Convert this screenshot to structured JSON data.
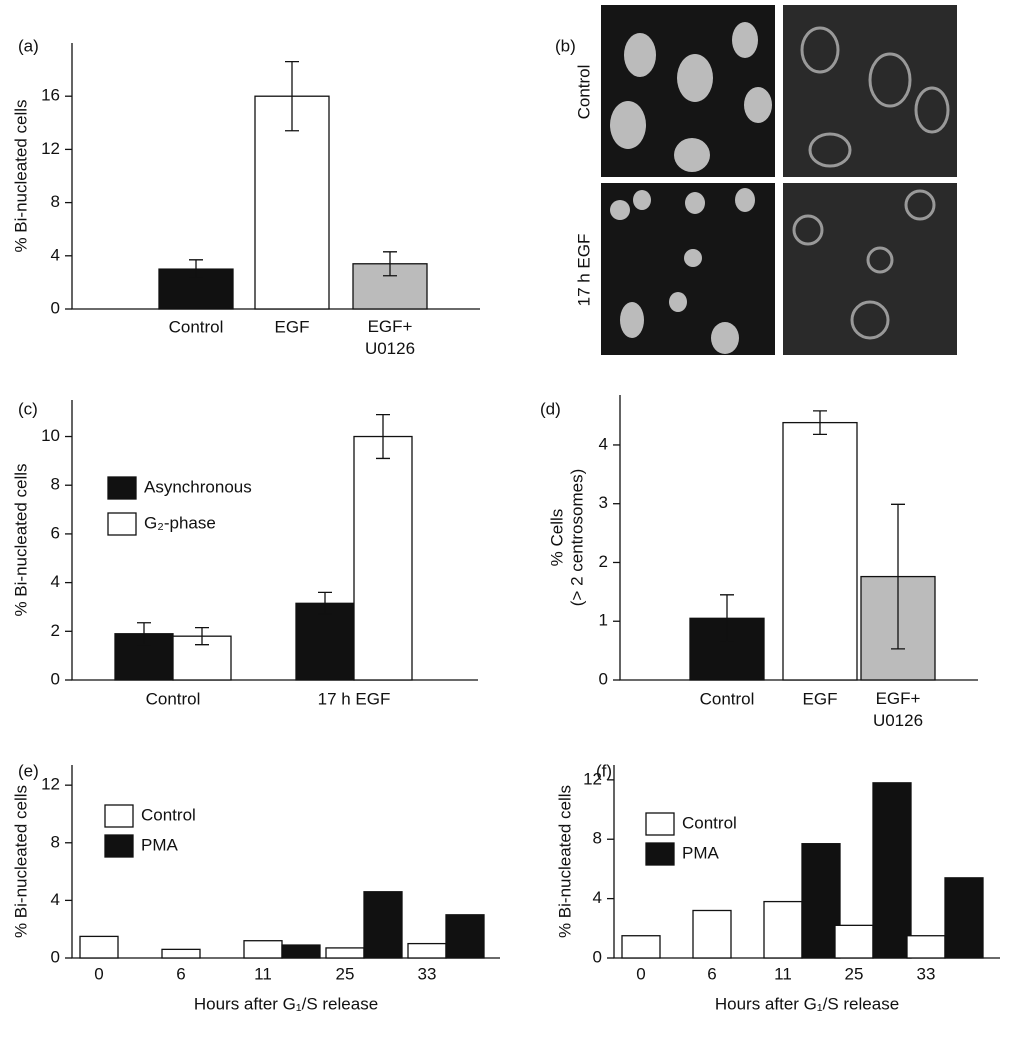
{
  "chart_data": [
    {
      "type": "bar",
      "panel": "(a)",
      "ylabel": [
        "% Bi-nucleated cells"
      ],
      "categories": [
        "Control",
        "EGF",
        "EGF+ U0126"
      ],
      "values": [
        3.0,
        16.0,
        3.4
      ],
      "errors": [
        0.7,
        2.6,
        0.9
      ],
      "colors": [
        "#111111",
        "#ffffff",
        "#bbbbbb"
      ],
      "ylim": [
        0,
        20
      ],
      "yticks": [
        0,
        4,
        8,
        12,
        16
      ]
    },
    {
      "type": "grouped-bar",
      "panel": "(c)",
      "ylabel": [
        "% Bi-nucleated cells"
      ],
      "categories": [
        "Control",
        "17 h EGF"
      ],
      "series": [
        {
          "name": "Asynchronous",
          "color": "#111111",
          "values": [
            1.9,
            3.15
          ],
          "errors": [
            0.45,
            0.45
          ]
        },
        {
          "name": "G₂-phase",
          "color": "#ffffff",
          "values": [
            1.8,
            10.0
          ],
          "errors": [
            0.35,
            0.9
          ]
        }
      ],
      "ylim": [
        0,
        11.5
      ],
      "yticks": [
        0,
        2,
        4,
        6,
        8,
        10
      ]
    },
    {
      "type": "bar",
      "panel": "(d)",
      "ylabel": [
        "% Cells",
        "(> 2 centrosomes)"
      ],
      "categories": [
        "Control",
        "EGF",
        "EGF+ U0126"
      ],
      "values": [
        1.05,
        4.38,
        1.76
      ],
      "errors": [
        0.4,
        0.2,
        1.23
      ],
      "colors": [
        "#111111",
        "#ffffff",
        "#bbbbbb"
      ],
      "ylim": [
        0,
        4.85
      ],
      "yticks": [
        0,
        1,
        2,
        3,
        4
      ]
    },
    {
      "type": "grouped-bar",
      "panel": "(e)",
      "ylabel": [
        "% Bi-nucleated cells"
      ],
      "xlabel": "Hours after G₁/S release",
      "categories": [
        "0",
        "6",
        "11",
        "25",
        "33"
      ],
      "series": [
        {
          "name": "Control",
          "color": "#ffffff",
          "values": [
            1.5,
            0.6,
            1.2,
            0.7,
            1.0
          ]
        },
        {
          "name": "PMA",
          "color": "#111111",
          "values": [
            null,
            null,
            0.9,
            4.6,
            3.0
          ]
        }
      ],
      "ylim": [
        0,
        13.4
      ],
      "yticks": [
        0,
        4,
        8,
        12
      ]
    },
    {
      "type": "grouped-bar",
      "panel": "(f)",
      "ylabel": [
        "% Bi-nucleated cells"
      ],
      "xlabel": "Hours after G₁/S release",
      "categories": [
        "0",
        "6",
        "11",
        "25",
        "33"
      ],
      "series": [
        {
          "name": "Control",
          "color": "#ffffff",
          "values": [
            1.5,
            3.2,
            3.8,
            2.2,
            1.5
          ]
        },
        {
          "name": "PMA",
          "color": "#111111",
          "values": [
            null,
            null,
            7.7,
            11.8,
            5.4
          ]
        }
      ],
      "ylim": [
        0,
        13
      ],
      "yticks": [
        0,
        4,
        8,
        12
      ]
    }
  ],
  "image_panel": {
    "panel": "(b)",
    "rows": [
      "Control",
      "17 h EGF"
    ]
  }
}
